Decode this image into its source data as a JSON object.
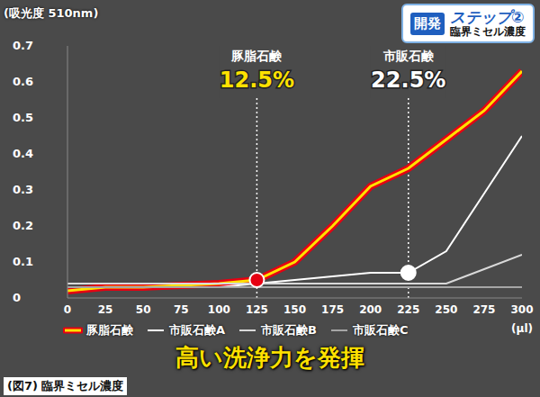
{
  "chart_data": {
    "type": "line",
    "y_label": "(吸光度 510nm)",
    "x_label": "(μl)",
    "badge": {
      "tag": "開発",
      "title": "ステップ②",
      "subtitle": "臨界ミセル濃度"
    },
    "caption": "高い洗浄力を発揮",
    "figure_label": "(図7) 臨界ミセル濃度",
    "x": [
      0,
      25,
      50,
      75,
      100,
      125,
      150,
      175,
      200,
      225,
      250,
      275,
      300
    ],
    "series": [
      {
        "name": "豚脂石鹸",
        "color": "#ffe100",
        "line_style": "solid",
        "values": [
          0.02,
          0.03,
          0.03,
          0.035,
          0.04,
          0.05,
          0.1,
          0.2,
          0.31,
          0.36,
          0.44,
          0.52,
          0.63
        ]
      },
      {
        "name": "市販石鹸A",
        "color": "#ffffff",
        "line_style": "solid",
        "values": [
          0.03,
          0.03,
          0.03,
          0.03,
          0.03,
          0.04,
          0.05,
          0.06,
          0.07,
          0.07,
          0.13,
          0.29,
          0.45
        ]
      },
      {
        "name": "市販石鹸B",
        "color": "#d9d9d9",
        "line_style": "solid",
        "values": [
          0.04,
          0.04,
          0.04,
          0.04,
          0.04,
          0.04,
          0.04,
          0.04,
          0.04,
          0.04,
          0.04,
          0.08,
          0.12
        ]
      },
      {
        "name": "市販石鹸C",
        "color": "#a6a6a6",
        "line_style": "solid",
        "values": [
          0.03,
          0.03,
          0.03,
          0.03,
          0.03,
          0.03,
          0.03,
          0.03,
          0.03,
          0.03,
          0.03,
          0.03,
          0.03
        ]
      }
    ],
    "xlim": [
      0,
      300
    ],
    "xticks": [
      0,
      25,
      50,
      75,
      100,
      125,
      150,
      175,
      200,
      225,
      250,
      275,
      300
    ],
    "ylim": [
      0,
      0.7
    ],
    "yticks": [
      0,
      0.1,
      0.2,
      0.3,
      0.4,
      0.5,
      0.6,
      0.7
    ],
    "grid": false,
    "legend": "bottom",
    "annotations": [
      {
        "x": 125,
        "series": "豚脂石鹸",
        "title": "豚脂石鹸",
        "label": "12.5%",
        "color": "#e60012"
      },
      {
        "x": 225,
        "series": "市販石鹸A",
        "title": "市販石鹸",
        "label": "22.5%",
        "color": "#ffffff"
      }
    ]
  }
}
